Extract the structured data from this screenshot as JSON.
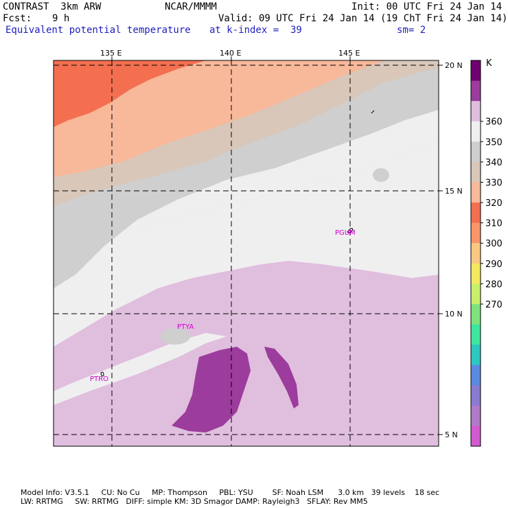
{
  "header": {
    "model": "CONTRAST  3km ARW",
    "center": "NCAR/MMMM",
    "init": "Init: 00 UTC Fri 24 Jan 14",
    "fcst_label": "Fcst:",
    "fcst_value": "9 h",
    "valid": "Valid: 09 UTC Fri 24 Jan 14 (19 ChT Fri 24 Jan 14)",
    "field": "Equivalent potential temperature",
    "level": "at k-index =  39",
    "smooth": "sm= 2"
  },
  "map": {
    "lon_labels": [
      "135 E",
      "140 E",
      "145 E"
    ],
    "lat_labels": [
      "20 N",
      "15 N",
      "10 N",
      "5 N"
    ],
    "stations": [
      "PGUM",
      "PTYA",
      "PTRO"
    ]
  },
  "colorbar": {
    "unit": "K",
    "ticks": [
      "360",
      "350",
      "340",
      "330",
      "320",
      "310",
      "300",
      "290",
      "280",
      "270"
    ],
    "colors": [
      "#6e0070",
      "#9c3c9c",
      "#e0bede",
      "#efefef",
      "#cfcfcf",
      "#d9c7b9",
      "#f8b89a",
      "#f36f50",
      "#f9956a",
      "#fac882",
      "#f4e860",
      "#c9f06a",
      "#7fe27e",
      "#3ee6a0",
      "#2ec7c2",
      "#5a8ae0",
      "#8a7ad0",
      "#b07ac8",
      "#d25ad0"
    ]
  },
  "footer": {
    "line1": "Model Info: V3.5.1     CU: No Cu     MP: Thompson     PBL: YSU        SF: Noah LSM      3.0 km   39 levels    18 sec",
    "line2": "LW: RRTMG     SW: RRTMG   DIFF: simple KM: 3D Smagor DAMP: Rayleigh3   SFLAY: Rev MM5"
  }
}
